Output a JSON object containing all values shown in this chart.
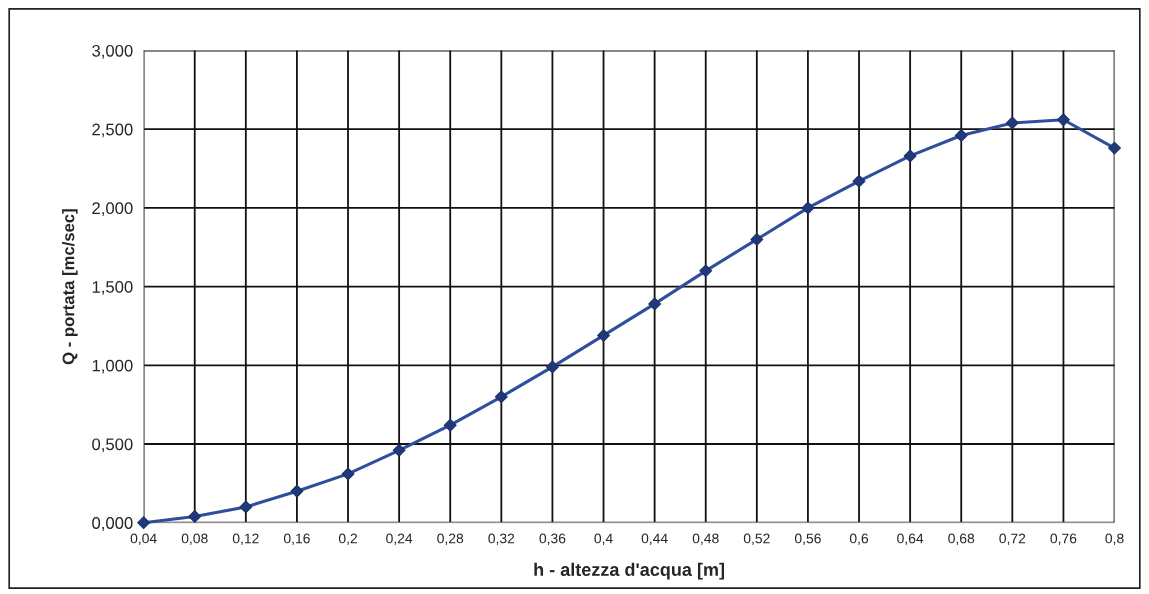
{
  "chart_data": {
    "type": "line",
    "xlabel": "h - altezza d'acqua [m]",
    "ylabel": "Q - portata [mc/sec]",
    "categories": [
      "0,04",
      "0,08",
      "0,12",
      "0,16",
      "0,2",
      "0,24",
      "0,28",
      "0,32",
      "0,36",
      "0,4",
      "0,44",
      "0,48",
      "0,52",
      "0,56",
      "0,6",
      "0,64",
      "0,68",
      "0,72",
      "0,76",
      "0,8"
    ],
    "series": [
      {
        "color": "#2f4f9c",
        "values": [
          0.0,
          0.04,
          0.1,
          0.2,
          0.31,
          0.46,
          0.62,
          0.8,
          0.99,
          1.19,
          1.39,
          1.6,
          1.8,
          2.0,
          2.17,
          2.33,
          2.46,
          2.54,
          2.56,
          2.38
        ]
      }
    ],
    "ylim": [
      0,
      3
    ],
    "yticks": [
      {
        "value": 0,
        "label": "0,000"
      },
      {
        "value": 0.5,
        "label": "0,500"
      },
      {
        "value": 1,
        "label": "1,000"
      },
      {
        "value": 1.5,
        "label": "1,500"
      },
      {
        "value": 2,
        "label": "2,000"
      },
      {
        "value": 2.5,
        "label": "2,500"
      },
      {
        "value": 3,
        "label": "3,000"
      }
    ],
    "grid": true,
    "marker": "diamond",
    "line_style": "solid"
  }
}
